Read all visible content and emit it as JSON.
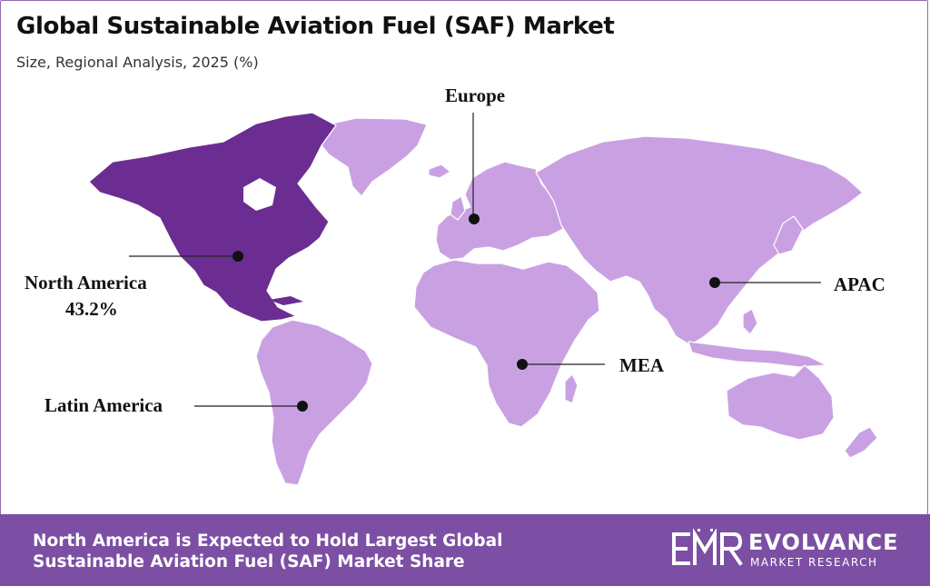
{
  "header": {
    "title": "Global Sustainable Aviation Fuel (SAF) Market",
    "subtitle": "Size, Regional Analysis, 2025 (%)"
  },
  "map": {
    "highlight_color": "#6b2d91",
    "land_color": "#c9a1e3",
    "regions": {
      "north_america": {
        "name": "North America",
        "value": "43.2%",
        "highlighted": true
      },
      "latin_america": {
        "name": "Latin America"
      },
      "europe": {
        "name": "Europe"
      },
      "mea": {
        "name": "MEA"
      },
      "apac": {
        "name": "APAC"
      }
    }
  },
  "footer": {
    "line1": "North America is Expected to Hold Largest Global",
    "line2": "Sustainable Aviation Fuel (SAF) Market Share",
    "background": "#7c4fa4"
  },
  "brand": {
    "logo_icon": "emr-logo-icon",
    "name": "EVOLVANCE",
    "tagline": "MARKET RESEARCH"
  }
}
